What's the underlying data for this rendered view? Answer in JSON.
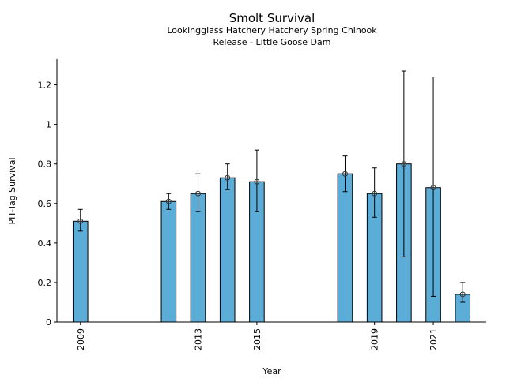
{
  "chart_data": {
    "type": "bar",
    "title": "Smolt Survival",
    "subtitle_lines": [
      "Lookingglass Hatchery Hatchery Spring Chinook",
      "Release - Little Goose Dam"
    ],
    "xlabel": "Year",
    "ylabel": "PIT-Tag Survival",
    "ylim": [
      0,
      1.33
    ],
    "xlim": [
      2008.2,
      2022.8
    ],
    "yticks": [
      0,
      0.2,
      0.4,
      0.6,
      0.8,
      1,
      1.2
    ],
    "ytick_labels": [
      "0",
      "0.2",
      "0.4",
      "0.6",
      "0.8",
      "1",
      "1.2"
    ],
    "xticks": [
      2009,
      2013,
      2015,
      2019,
      2021
    ],
    "xtick_labels": [
      "2009",
      "2013",
      "2015",
      "2019",
      "2021"
    ],
    "bar_color": "#5BACD6",
    "grid": false,
    "series": [
      {
        "name": "Survival",
        "x": [
          2009,
          2012,
          2013,
          2014,
          2015,
          2018,
          2019,
          2020,
          2021,
          2022
        ],
        "values": [
          0.51,
          0.61,
          0.65,
          0.73,
          0.71,
          0.75,
          0.65,
          0.8,
          0.68,
          0.14
        ],
        "err_low": [
          0.46,
          0.57,
          0.56,
          0.67,
          0.56,
          0.66,
          0.53,
          0.33,
          0.13,
          0.1
        ],
        "err_high": [
          0.57,
          0.65,
          0.75,
          0.8,
          0.87,
          0.84,
          0.78,
          1.27,
          1.24,
          0.2
        ]
      }
    ]
  }
}
